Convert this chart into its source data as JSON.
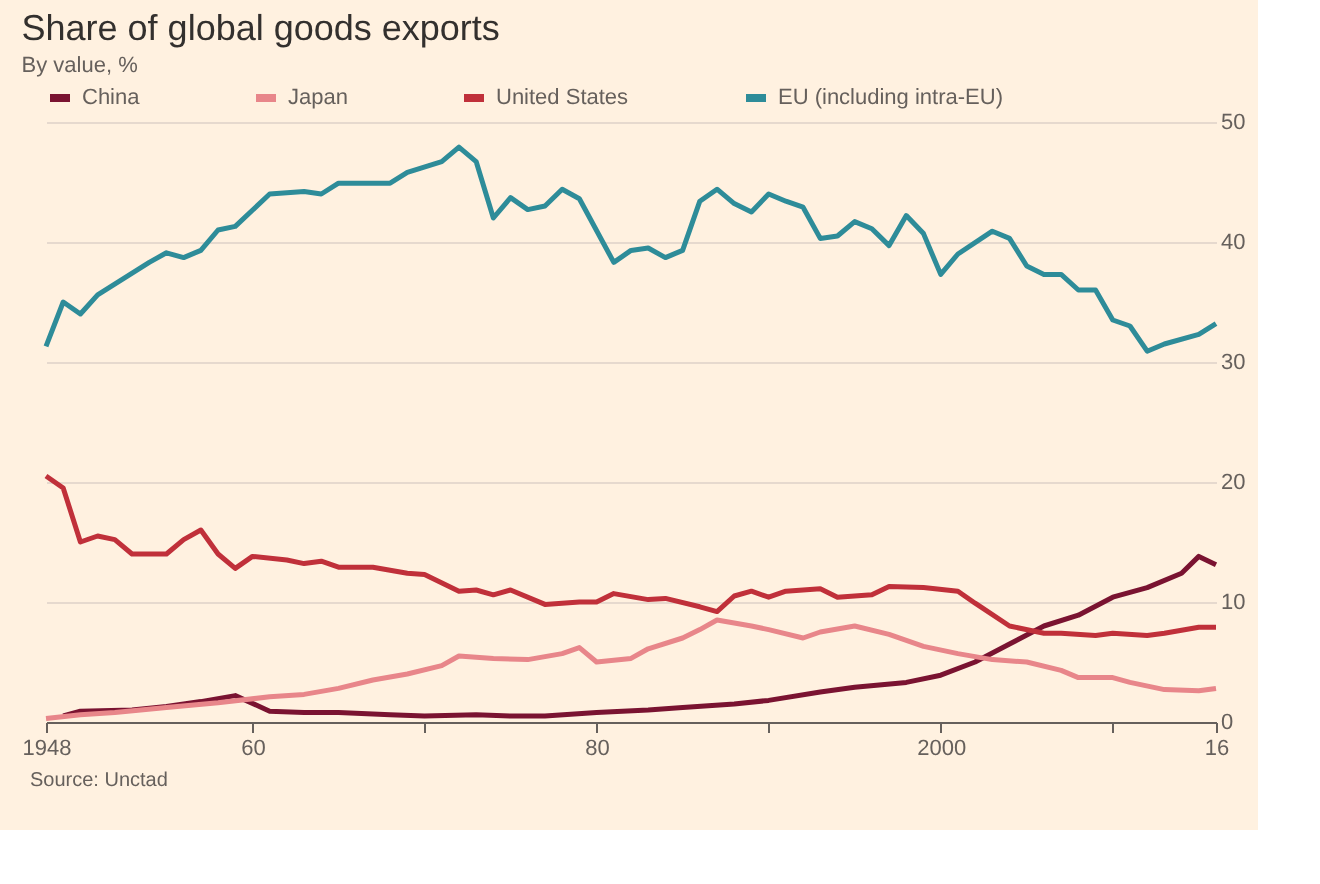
{
  "chart_data": {
    "type": "line",
    "title": "Share of global goods exports",
    "subtitle": "By value, %",
    "annotations": [
      "Source: Unctad"
    ],
    "xlim": [
      1948,
      2016
    ],
    "xticks": [
      {
        "value": 1948,
        "label": "1948"
      },
      {
        "value": 1960,
        "label": "60"
      },
      {
        "value": 1970,
        "label": null
      },
      {
        "value": 1980,
        "label": "80"
      },
      {
        "value": 1990,
        "label": null
      },
      {
        "value": 2000,
        "label": "2000"
      },
      {
        "value": 2010,
        "label": null
      },
      {
        "value": 2016,
        "label": "16"
      }
    ],
    "ylim": [
      0,
      50
    ],
    "yticks": [
      0,
      10,
      20,
      30,
      40,
      50
    ],
    "grid": "y",
    "legend": "top",
    "marker": "none",
    "line_style": "solid",
    "series": [
      {
        "name": "China",
        "color": "#7a1331",
        "x": [
          1949,
          1950,
          1953,
          1955,
          1957,
          1959,
          1961,
          1963,
          1965,
          1968,
          1970,
          1973,
          1975,
          1977,
          1980,
          1983,
          1985,
          1988,
          1990,
          1993,
          1995,
          1998,
          2000,
          2002,
          2004,
          2006,
          2008,
          2010,
          2012,
          2014,
          2015,
          2016
        ],
        "values": [
          0.5,
          0.9,
          1.0,
          1.3,
          1.7,
          2.2,
          0.9,
          0.8,
          0.8,
          0.6,
          0.5,
          0.6,
          0.5,
          0.5,
          0.8,
          1.0,
          1.2,
          1.5,
          1.8,
          2.5,
          2.9,
          3.3,
          3.9,
          5.0,
          6.5,
          8.0,
          8.9,
          10.4,
          11.2,
          12.4,
          13.8,
          13.1
        ]
      },
      {
        "name": "Japan",
        "color": "#e8868a",
        "x": [
          1948,
          1950,
          1952,
          1955,
          1958,
          1961,
          1963,
          1965,
          1967,
          1969,
          1971,
          1972,
          1974,
          1976,
          1978,
          1979,
          1980,
          1982,
          1983,
          1985,
          1986,
          1987,
          1989,
          1990,
          1992,
          1993,
          1995,
          1997,
          1999,
          2001,
          2003,
          2005,
          2007,
          2008,
          2010,
          2011,
          2013,
          2015,
          2016
        ],
        "values": [
          0.3,
          0.6,
          0.8,
          1.2,
          1.6,
          2.1,
          2.3,
          2.8,
          3.5,
          4.0,
          4.7,
          5.5,
          5.3,
          5.2,
          5.7,
          6.2,
          5.0,
          5.3,
          6.1,
          7.0,
          7.7,
          8.5,
          8.0,
          7.7,
          7.0,
          7.5,
          8.0,
          7.3,
          6.3,
          5.7,
          5.2,
          5.0,
          4.3,
          3.7,
          3.7,
          3.3,
          2.7,
          2.6,
          2.8
        ]
      },
      {
        "name": "United States",
        "color": "#c0303a",
        "x": [
          1948,
          1949,
          1950,
          1951,
          1952,
          1953,
          1955,
          1956,
          1957,
          1958,
          1959,
          1960,
          1962,
          1963,
          1964,
          1965,
          1967,
          1969,
          1970,
          1972,
          1973,
          1974,
          1975,
          1977,
          1979,
          1980,
          1981,
          1983,
          1984,
          1986,
          1987,
          1988,
          1989,
          1990,
          1991,
          1993,
          1994,
          1996,
          1997,
          1999,
          2001,
          2002,
          2004,
          2006,
          2007,
          2009,
          2010,
          2012,
          2013,
          2015,
          2016
        ],
        "values": [
          20.5,
          19.5,
          15.0,
          15.5,
          15.2,
          14.0,
          14.0,
          15.2,
          16.0,
          14.0,
          12.8,
          13.8,
          13.5,
          13.2,
          13.4,
          12.9,
          12.9,
          12.4,
          12.3,
          10.9,
          11.0,
          10.6,
          11.0,
          9.8,
          10.0,
          10.0,
          10.7,
          10.2,
          10.3,
          9.6,
          9.2,
          10.5,
          10.9,
          10.4,
          10.9,
          11.1,
          10.4,
          10.6,
          11.3,
          11.2,
          10.9,
          9.9,
          8.0,
          7.4,
          7.4,
          7.2,
          7.4,
          7.2,
          7.4,
          7.9,
          7.9
        ]
      },
      {
        "name": "EU (including intra-EU)",
        "color": "#2e8c99",
        "x": [
          1948,
          1949,
          1950,
          1951,
          1954,
          1955,
          1956,
          1957,
          1958,
          1959,
          1961,
          1963,
          1964,
          1965,
          1968,
          1969,
          1971,
          1972,
          1973,
          1974,
          1975,
          1976,
          1977,
          1978,
          1979,
          1981,
          1982,
          1983,
          1984,
          1985,
          1986,
          1987,
          1988,
          1989,
          1990,
          1991,
          1992,
          1993,
          1994,
          1995,
          1996,
          1997,
          1998,
          1999,
          2000,
          2001,
          2003,
          2004,
          2005,
          2006,
          2007,
          2008,
          2009,
          2010,
          2011,
          2012,
          2013,
          2015,
          2016
        ],
        "values": [
          31.3,
          35.0,
          34.0,
          35.6,
          38.3,
          39.1,
          38.7,
          39.3,
          41.0,
          41.3,
          44.0,
          44.2,
          44.0,
          44.9,
          44.9,
          45.8,
          46.7,
          47.9,
          46.7,
          42.0,
          43.7,
          42.7,
          43.0,
          44.4,
          43.6,
          38.3,
          39.3,
          39.5,
          38.7,
          39.3,
          43.4,
          44.4,
          43.2,
          42.5,
          44.0,
          43.4,
          42.9,
          40.3,
          40.5,
          41.7,
          41.1,
          39.7,
          42.2,
          40.7,
          37.3,
          39.0,
          40.9,
          40.3,
          38.0,
          37.3,
          37.3,
          36.0,
          36.0,
          33.5,
          33.0,
          30.9,
          31.5,
          32.3,
          33.2
        ]
      }
    ]
  }
}
